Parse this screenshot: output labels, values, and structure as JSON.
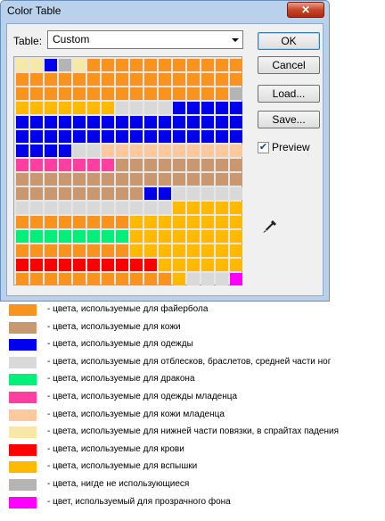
{
  "dialog": {
    "title": "Color Table",
    "close_label": "✕",
    "table_label": "Table:",
    "table_value": "Custom",
    "buttons": {
      "ok": "OK",
      "cancel": "Cancel",
      "load": "Load...",
      "save": "Save..."
    },
    "preview_label": "Preview",
    "preview_checked": true
  },
  "palette": {
    "O": "#f7931e",
    "B": "#c8996e",
    "U": "#0000ee",
    "L": "#d9d9d9",
    "G": "#00f07a",
    "P": "#ff3f9f",
    "S": "#fcc99e",
    "Y": "#f8e8a8",
    "R": "#ff0000",
    "F": "#ffba00",
    "N": "#b4b4b4",
    "M": "#ff00ff"
  },
  "grid_rows": [
    "YYUNYOOOOOOOOOOO",
    "OOOOOOOOOOOOOOOO",
    "OOOOOOOOOOOOOOON",
    "FFFFFFFLLLLUUUUU",
    "UUUUUUUUUUUUUUUU",
    "UUUUUUUUUUUUUUUU",
    "UUUULLSSSSSSSSSS",
    "PPPPPPPBBBBBBBBB",
    "BBBBBBBBBBBBBBBB",
    "BBBBBBBBBUULLLLL",
    "LLLLLLLLLLLFFFFF",
    "OOOOOOOOFFFFFFFF",
    "GGGGGGGGFFFFFFFF",
    "OOOOOOOOFFFFFFFF",
    "RRRRRRRRRRFFFFFF",
    "OOOOOOOOOOOFLLLM"
  ],
  "legend": [
    {
      "color": "#f7931e",
      "text": "- цвета, используемые для файербола"
    },
    {
      "color": "#c8996e",
      "text": "- цвета, используемые для кожи"
    },
    {
      "color": "#0000ee",
      "text": "- цвета, используемые для одежды"
    },
    {
      "color": "#d9d9d9",
      "text": "- цвета, используемые для отблесков, браслетов, средней части ног"
    },
    {
      "color": "#00f07a",
      "text": "- цвета, используемые для дракона"
    },
    {
      "color": "#ff3f9f",
      "text": "- цвета, используемые для одежды младенца"
    },
    {
      "color": "#fcc99e",
      "text": "- цвета, используемые для кожи  младенца"
    },
    {
      "color": "#f8e8a8",
      "text": "- цвета, используемые для нижней части повязки, в спрайтах падения"
    },
    {
      "color": "#ff0000",
      "text": "- цвета, используемые для крови"
    },
    {
      "color": "#ffba00",
      "text": "- цвета, используемые для вспышки"
    },
    {
      "color": "#b4b4b4",
      "text": "- цвета, нигде не использующиеся"
    },
    {
      "color": "#ff00ff",
      "text": "- цвет, используемый для прозрачного фона"
    }
  ]
}
